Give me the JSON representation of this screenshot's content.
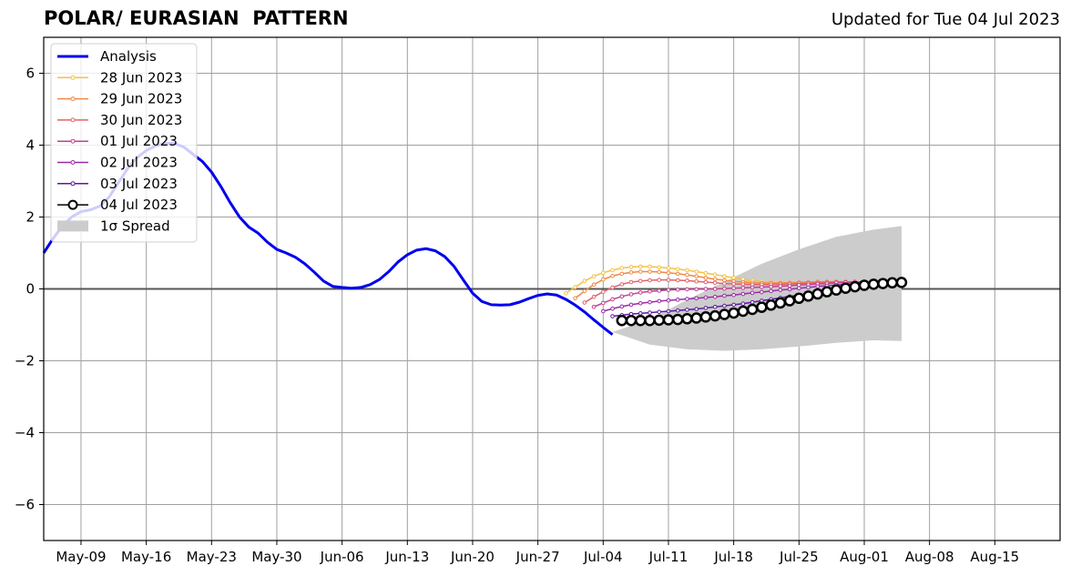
{
  "chart_data": {
    "type": "line",
    "title": "POLAR/ EURASIAN  PATTERN",
    "subtitle": "Updated for Tue 04 Jul 2023",
    "x_tick_labels": [
      "May-09",
      "May-16",
      "May-23",
      "May-30",
      "Jun-06",
      "Jun-13",
      "Jun-20",
      "Jun-27",
      "Jul-04",
      "Jul-11",
      "Jul-18",
      "Jul-25",
      "Aug-01",
      "Aug-08",
      "Aug-15"
    ],
    "y_ticks": [
      -6,
      -4,
      -2,
      0,
      2,
      4,
      6
    ],
    "y_tick_labels": [
      "−6",
      "−4",
      "−2",
      "0",
      "2",
      "4",
      "6"
    ],
    "xlim": [
      "2023-05-05",
      "2023-08-22"
    ],
    "ylim": [
      -7,
      7
    ],
    "grid": true,
    "legend_position": "top-left",
    "analysis": {
      "name": "Analysis",
      "color": "#0000ee",
      "points": [
        [
          "2023-05-05",
          1.0
        ],
        [
          "2023-05-06",
          1.4
        ],
        [
          "2023-05-07",
          1.75
        ],
        [
          "2023-05-08",
          2.0
        ],
        [
          "2023-05-09",
          2.15
        ],
        [
          "2023-05-10",
          2.2
        ],
        [
          "2023-05-11",
          2.3
        ],
        [
          "2023-05-12",
          2.55
        ],
        [
          "2023-05-13",
          2.95
        ],
        [
          "2023-05-14",
          3.35
        ],
        [
          "2023-05-15",
          3.65
        ],
        [
          "2023-05-16",
          3.85
        ],
        [
          "2023-05-17",
          3.98
        ],
        [
          "2023-05-18",
          4.05
        ],
        [
          "2023-05-19",
          4.05
        ],
        [
          "2023-05-20",
          3.95
        ],
        [
          "2023-05-21",
          3.75
        ],
        [
          "2023-05-22",
          3.55
        ],
        [
          "2023-05-23",
          3.25
        ],
        [
          "2023-05-24",
          2.85
        ],
        [
          "2023-05-25",
          2.4
        ],
        [
          "2023-05-26",
          2.0
        ],
        [
          "2023-05-27",
          1.72
        ],
        [
          "2023-05-28",
          1.55
        ],
        [
          "2023-05-29",
          1.3
        ],
        [
          "2023-05-30",
          1.1
        ],
        [
          "2023-05-31",
          1.0
        ],
        [
          "2023-06-01",
          0.88
        ],
        [
          "2023-06-02",
          0.7
        ],
        [
          "2023-06-03",
          0.47
        ],
        [
          "2023-06-04",
          0.22
        ],
        [
          "2023-06-05",
          0.07
        ],
        [
          "2023-06-06",
          0.04
        ],
        [
          "2023-06-07",
          0.02
        ],
        [
          "2023-06-08",
          0.04
        ],
        [
          "2023-06-09",
          0.12
        ],
        [
          "2023-06-10",
          0.26
        ],
        [
          "2023-06-11",
          0.48
        ],
        [
          "2023-06-12",
          0.75
        ],
        [
          "2023-06-13",
          0.95
        ],
        [
          "2023-06-14",
          1.08
        ],
        [
          "2023-06-15",
          1.12
        ],
        [
          "2023-06-16",
          1.06
        ],
        [
          "2023-06-17",
          0.9
        ],
        [
          "2023-06-18",
          0.63
        ],
        [
          "2023-06-19",
          0.25
        ],
        [
          "2023-06-20",
          -0.12
        ],
        [
          "2023-06-21",
          -0.35
        ],
        [
          "2023-06-22",
          -0.44
        ],
        [
          "2023-06-23",
          -0.45
        ],
        [
          "2023-06-24",
          -0.44
        ],
        [
          "2023-06-25",
          -0.37
        ],
        [
          "2023-06-26",
          -0.27
        ],
        [
          "2023-06-27",
          -0.18
        ],
        [
          "2023-06-28",
          -0.14
        ],
        [
          "2023-06-29",
          -0.17
        ],
        [
          "2023-06-30",
          -0.29
        ],
        [
          "2023-07-01",
          -0.45
        ],
        [
          "2023-07-02",
          -0.64
        ],
        [
          "2023-07-03",
          -0.86
        ],
        [
          "2023-07-04",
          -1.07
        ],
        [
          "2023-07-05",
          -1.27
        ]
      ]
    },
    "spread": {
      "name": "1σ Spread",
      "color": "#cccccc",
      "x": [
        "2023-07-05",
        "2023-07-09",
        "2023-07-13",
        "2023-07-17",
        "2023-07-21",
        "2023-07-25",
        "2023-07-29",
        "2023-08-02",
        "2023-08-05"
      ],
      "upper": [
        -1.2,
        -0.85,
        -0.3,
        0.2,
        0.7,
        1.1,
        1.45,
        1.65,
        1.75
      ],
      "lower": [
        -1.2,
        -1.55,
        -1.68,
        -1.72,
        -1.68,
        -1.6,
        -1.5,
        -1.43,
        -1.45
      ]
    },
    "series": [
      {
        "name": "28 Jun 2023",
        "color": "#f5c242",
        "marker": "small",
        "start": "2023-06-30",
        "values": [
          -0.12,
          0.05,
          0.22,
          0.35,
          0.45,
          0.52,
          0.58,
          0.61,
          0.62,
          0.62,
          0.6,
          0.58,
          0.55,
          0.52,
          0.48,
          0.44,
          0.4,
          0.35,
          0.31,
          0.27,
          0.23,
          0.2,
          0.18,
          0.17,
          0.17,
          0.17,
          0.18,
          0.19,
          0.2,
          0.2
        ]
      },
      {
        "name": "29 Jun 2023",
        "color": "#ee8a45",
        "marker": "small",
        "start": "2023-07-01",
        "values": [
          -0.26,
          -0.06,
          0.12,
          0.26,
          0.36,
          0.42,
          0.46,
          0.48,
          0.48,
          0.47,
          0.45,
          0.42,
          0.39,
          0.35,
          0.31,
          0.27,
          0.24,
          0.21,
          0.19,
          0.17,
          0.16,
          0.16,
          0.16,
          0.17,
          0.18,
          0.19,
          0.2,
          0.2,
          0.2,
          0.2
        ]
      },
      {
        "name": "30 Jun 2023",
        "color": "#e0636d",
        "marker": "small",
        "start": "2023-07-02",
        "values": [
          -0.38,
          -0.22,
          -0.08,
          0.04,
          0.13,
          0.19,
          0.22,
          0.24,
          0.25,
          0.25,
          0.24,
          0.23,
          0.21,
          0.19,
          0.17,
          0.15,
          0.14,
          0.13,
          0.12,
          0.12,
          0.12,
          0.13,
          0.14,
          0.15,
          0.16,
          0.17,
          0.18,
          0.19,
          0.19,
          0.2
        ]
      },
      {
        "name": "01 Jul 2023",
        "color": "#c43f8f",
        "marker": "small",
        "start": "2023-07-03",
        "values": [
          -0.5,
          -0.39,
          -0.29,
          -0.21,
          -0.15,
          -0.1,
          -0.07,
          -0.05,
          -0.03,
          -0.02,
          -0.01,
          -0.01,
          0.0,
          0.0,
          0.01,
          0.02,
          0.03,
          0.04,
          0.05,
          0.06,
          0.08,
          0.09,
          0.11,
          0.12,
          0.14,
          0.15,
          0.17,
          0.18,
          0.19,
          0.2
        ]
      },
      {
        "name": "02 Jul 2023",
        "color": "#9b2aa6",
        "marker": "small",
        "start": "2023-07-04",
        "values": [
          -0.62,
          -0.55,
          -0.49,
          -0.44,
          -0.4,
          -0.37,
          -0.34,
          -0.32,
          -0.3,
          -0.28,
          -0.26,
          -0.24,
          -0.22,
          -0.19,
          -0.17,
          -0.14,
          -0.11,
          -0.09,
          -0.06,
          -0.03,
          -0.01,
          0.02,
          0.04,
          0.07,
          0.09,
          0.11,
          0.13,
          0.15,
          0.17,
          0.18
        ]
      },
      {
        "name": "03 Jul 2023",
        "color": "#5b1a9c",
        "marker": "small",
        "start": "2023-07-05",
        "values": [
          -0.76,
          -0.73,
          -0.7,
          -0.68,
          -0.66,
          -0.64,
          -0.62,
          -0.6,
          -0.58,
          -0.56,
          -0.53,
          -0.5,
          -0.47,
          -0.44,
          -0.41,
          -0.37,
          -0.33,
          -0.29,
          -0.25,
          -0.21,
          -0.17,
          -0.13,
          -0.09,
          -0.05,
          -0.02,
          0.02,
          0.05,
          0.08,
          0.11,
          0.14
        ]
      },
      {
        "name": "04 Jul 2023",
        "color": "#000000",
        "marker": "large-open",
        "start": "2023-07-06",
        "values": [
          -0.88,
          -0.88,
          -0.88,
          -0.88,
          -0.87,
          -0.86,
          -0.85,
          -0.83,
          -0.81,
          -0.78,
          -0.75,
          -0.71,
          -0.67,
          -0.62,
          -0.57,
          -0.51,
          -0.45,
          -0.39,
          -0.33,
          -0.26,
          -0.2,
          -0.14,
          -0.08,
          -0.03,
          0.02,
          0.06,
          0.1,
          0.13,
          0.15,
          0.17,
          0.18
        ]
      }
    ]
  }
}
